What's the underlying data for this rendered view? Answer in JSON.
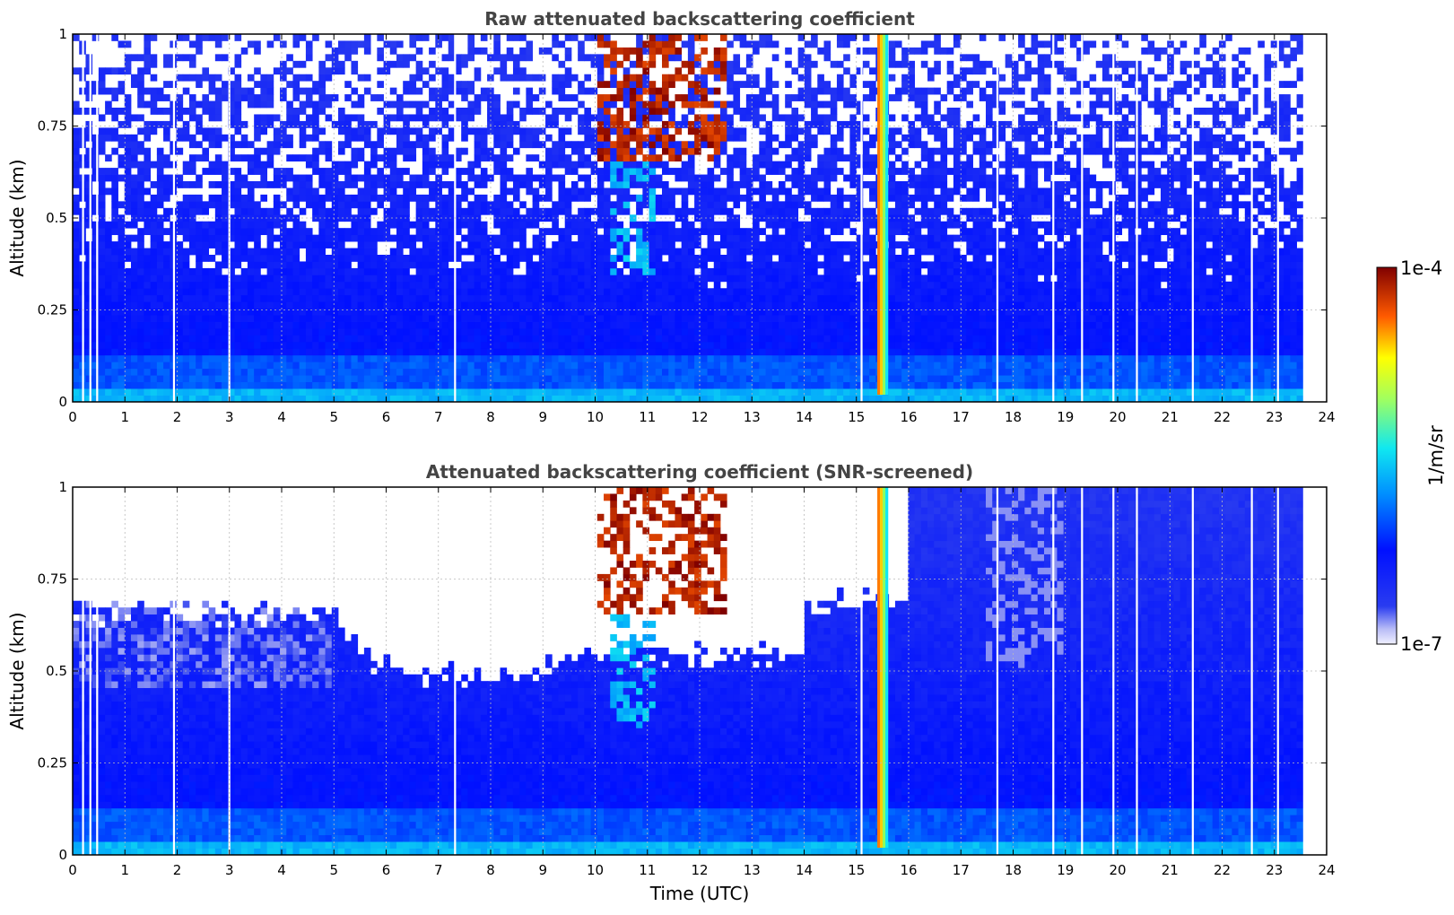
{
  "chart_data": [
    {
      "type": "heatmap",
      "title": "Raw attenuated backscattering coefficient",
      "xlabel": "",
      "ylabel": "Altitude (km)",
      "xlim": [
        0,
        24
      ],
      "ylim": [
        0,
        1
      ],
      "x_ticks": [
        "0",
        "1",
        "2",
        "3",
        "4",
        "5",
        "6",
        "7",
        "8",
        "9",
        "10",
        "11",
        "12",
        "13",
        "14",
        "15",
        "16",
        "17",
        "18",
        "19",
        "20",
        "21",
        "22",
        "23",
        "24"
      ],
      "y_ticks": [
        "0",
        "0.25",
        "0.5",
        "0.75",
        "1"
      ],
      "grid": true,
      "data_end_time": 23.55,
      "screened": false
    },
    {
      "type": "heatmap",
      "title": "Attenuated backscattering coefficient (SNR-screened)",
      "xlabel": "Time (UTC)",
      "ylabel": "Altitude (km)",
      "xlim": [
        0,
        24
      ],
      "ylim": [
        0,
        1
      ],
      "x_ticks": [
        "0",
        "1",
        "2",
        "3",
        "4",
        "5",
        "6",
        "7",
        "8",
        "9",
        "10",
        "11",
        "12",
        "13",
        "14",
        "15",
        "16",
        "17",
        "18",
        "19",
        "20",
        "21",
        "22",
        "23",
        "24"
      ],
      "y_ticks": [
        "0",
        "0.25",
        "0.5",
        "0.75",
        "1"
      ],
      "grid": true,
      "data_end_time": 23.55,
      "screened": true
    }
  ],
  "colorbar": {
    "label": "1/m/sr",
    "max_label": "1e-4",
    "min_label": "1e-7",
    "scale": "log",
    "range": [
      1e-07,
      0.0001
    ],
    "colormap": "jet"
  },
  "colors": {
    "title": "#444444",
    "grid": "#bbbbbb",
    "background_blue": "#1638e8",
    "high": "#8b0000"
  }
}
